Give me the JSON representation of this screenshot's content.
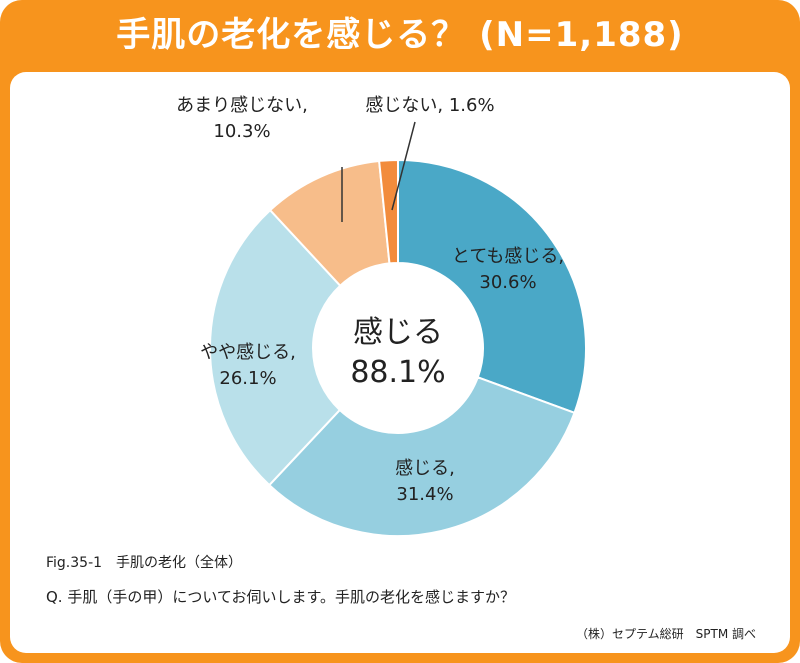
{
  "colors": {
    "frame": "#f7941d",
    "title_text": "#ffffff",
    "very_much": "#4aa8c7",
    "yes": "#96cfe0",
    "somewhat": "#b9e0ea",
    "not_really": "#f7bd8a",
    "no": "#f28c3c"
  },
  "chart_data": {
    "type": "pie",
    "title": "手肌の老化を感じる？ (N=1,188)",
    "donut": true,
    "center_label": "感じる",
    "center_value": "88.1%",
    "slices": [
      {
        "label": "とても感じる,",
        "value": 30.6,
        "value_text": "30.6%",
        "color": "#4aa8c7"
      },
      {
        "label": "感じる,",
        "value": 31.4,
        "value_text": "31.4%",
        "color": "#96cfe0"
      },
      {
        "label": "やや感じる,",
        "value": 26.1,
        "value_text": "26.1%",
        "color": "#b9e0ea"
      },
      {
        "label": "あまり感じない,",
        "value": 10.3,
        "value_text": "10.3%",
        "color": "#f7bd8a"
      },
      {
        "label": "感じない, 1.6%",
        "value": 1.6,
        "value_text": "",
        "color": "#f28c3c"
      }
    ]
  },
  "notes": {
    "fig": "Fig.35-1　手肌の老化（全体）",
    "question": "Q. 手肌（手の甲）についてお伺いします。手肌の老化を感じますか？",
    "source": "（株）セプテム総研　SPTM 調べ"
  }
}
